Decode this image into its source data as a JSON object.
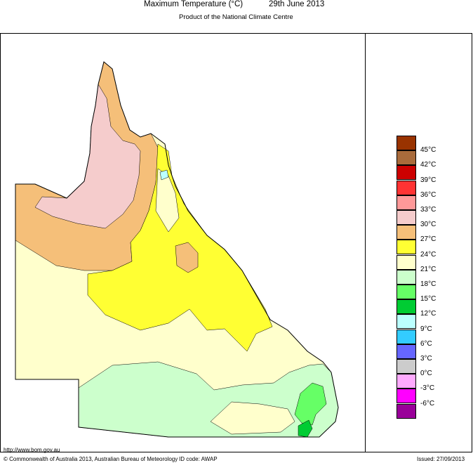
{
  "header": {
    "title": "Maximum Temperature (°C)",
    "date": "29th June 2013",
    "subtitle": "Product of the National Climate Centre"
  },
  "legend": {
    "entries": [
      {
        "label": "45°C",
        "color": "#993300"
      },
      {
        "label": "42°C",
        "color": "#a96b3b"
      },
      {
        "label": "39°C",
        "color": "#cc0000"
      },
      {
        "label": "36°C",
        "color": "#ff3333"
      },
      {
        "label": "33°C",
        "color": "#ff9999"
      },
      {
        "label": "30°C",
        "color": "#f5cccc"
      },
      {
        "label": "27°C",
        "color": "#f5bf79"
      },
      {
        "label": "24°C",
        "color": "#ffff33"
      },
      {
        "label": "21°C",
        "color": "#ffffcc"
      },
      {
        "label": "18°C",
        "color": "#ccffcc"
      },
      {
        "label": "15°C",
        "color": "#66ff66"
      },
      {
        "label": "12°C",
        "color": "#00cc33"
      },
      {
        "label": "9°C",
        "color": "#bbffff"
      },
      {
        "label": "6°C",
        "color": "#33ccff"
      },
      {
        "label": "3°C",
        "color": "#6666ff"
      },
      {
        "label": "0°C",
        "color": "#cccccc"
      },
      {
        "label": "-3°C",
        "color": "#ffaaff"
      },
      {
        "label": "-6°C",
        "color": "#ff00ff"
      },
      {
        "last_color": "#990099"
      }
    ]
  },
  "map_colors": {
    "orange": "#f5bf79",
    "pink": "#f5cccc",
    "yellow": "#ffff33",
    "cream": "#ffffcc",
    "light_green": "#ccffcc",
    "green": "#66ff66",
    "dark_green": "#00cc33",
    "light_cyan": "#bbffff"
  },
  "footer": {
    "url": "http://www.bom.gov.au",
    "copyright": "© Commonwealth of Australia 2013, Australian Bureau of Meteorology",
    "id_code": "ID code: AWAP",
    "issued": "Issued: 27/09/2013"
  }
}
